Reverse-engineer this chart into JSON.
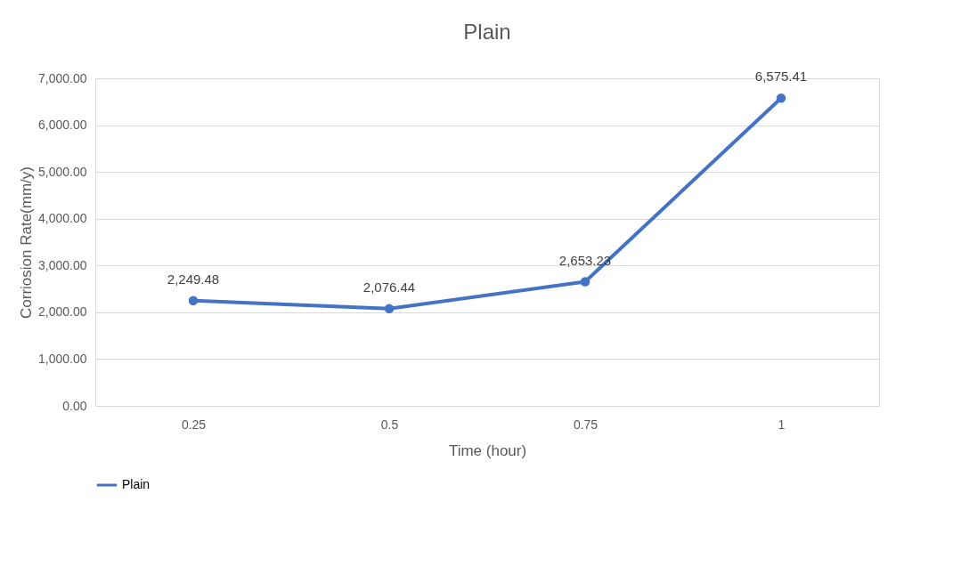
{
  "chart_data": {
    "type": "line",
    "title": "Plain",
    "xlabel": "Time (hour)",
    "ylabel": "Corriosion Rate(mm/y)",
    "categories": [
      "0.25",
      "0.5",
      "0.75",
      "1"
    ],
    "series": [
      {
        "name": "Plain",
        "color": "#4472c4",
        "values": [
          2249.48,
          2076.44,
          2653.23,
          6575.41
        ],
        "value_labels": [
          "2,249.48",
          "2,076.44",
          "2,653.23",
          "6,575.41"
        ]
      }
    ],
    "ylim": [
      0,
      7000
    ],
    "yticks": [
      {
        "value": 0,
        "label": "0.00"
      },
      {
        "value": 1000,
        "label": "1,000.00"
      },
      {
        "value": 2000,
        "label": "2,000.00"
      },
      {
        "value": 3000,
        "label": "3,000.00"
      },
      {
        "value": 4000,
        "label": "4,000.00"
      },
      {
        "value": 5000,
        "label": "5,000.00"
      },
      {
        "value": 6000,
        "label": "6,000.00"
      },
      {
        "value": 7000,
        "label": "7,000.00"
      }
    ],
    "grid": "y",
    "legend": "bottom",
    "marker": "circle",
    "line_style": "solid"
  }
}
